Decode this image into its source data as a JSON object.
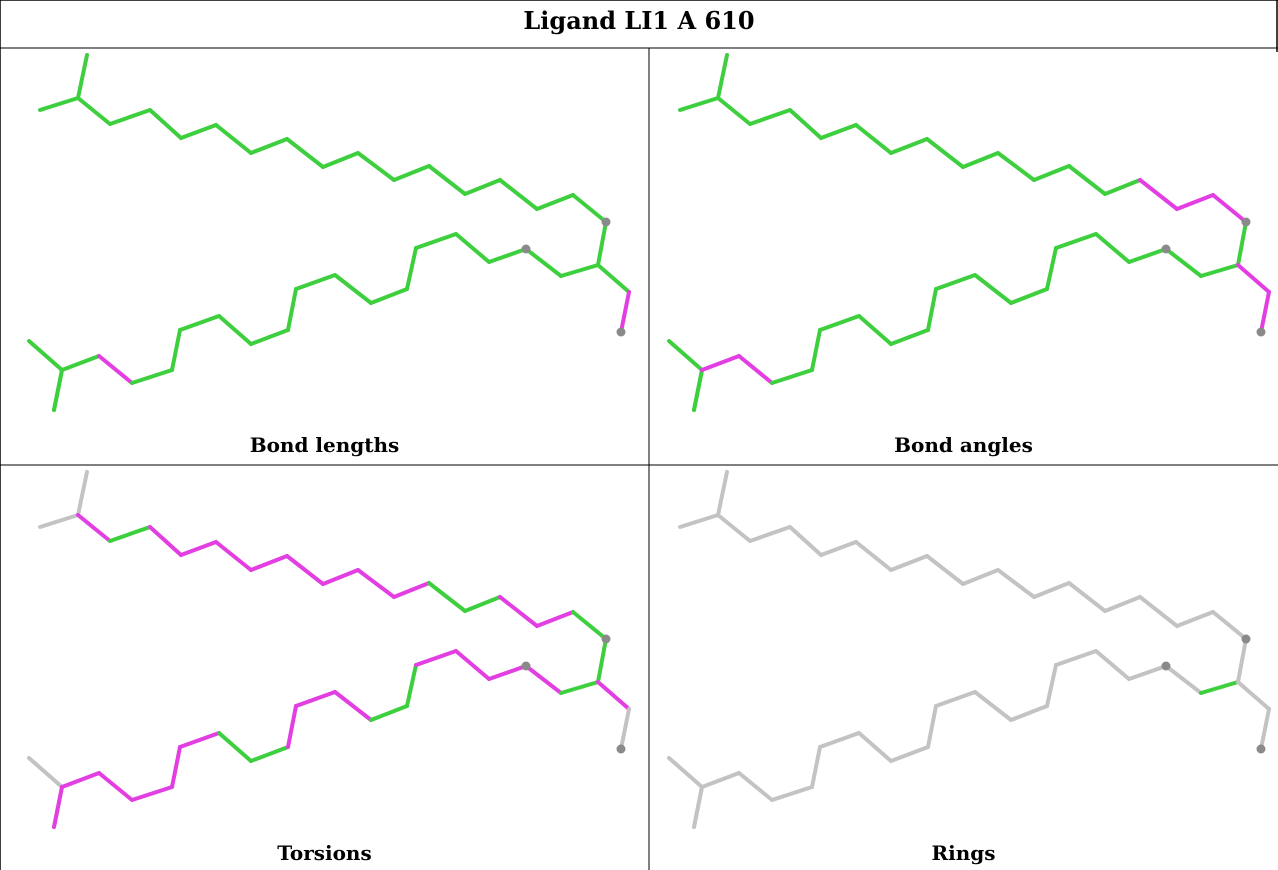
{
  "title": "Ligand LI1 A 610",
  "colors": {
    "ok": "#3ecf3e",
    "outlier": "#e23ee2",
    "none": "#c3c3c3",
    "atom": "#8a8a8a"
  },
  "panels": [
    {
      "caption": "Bond lengths",
      "chain1": [
        "ok",
        "ok",
        "ok",
        "ok",
        "ok",
        "ok",
        "ok",
        "ok",
        "ok",
        "ok",
        "ok",
        "ok",
        "ok",
        "ok",
        "ok",
        "ok",
        "ok",
        "ok"
      ],
      "chain2": [
        "ok",
        "ok",
        "ok",
        "ok",
        "outlier",
        "ok",
        "ok",
        "ok",
        "ok",
        "ok",
        "ok",
        "ok",
        "ok",
        "ok",
        "ok",
        "ok",
        "ok",
        "ok",
        "ok"
      ],
      "branch": [
        "ok",
        "outlier"
      ]
    },
    {
      "caption": "Bond angles",
      "chain1": [
        "ok",
        "ok",
        "ok",
        "ok",
        "ok",
        "ok",
        "ok",
        "ok",
        "ok",
        "ok",
        "ok",
        "ok",
        "ok",
        "ok",
        "outlier",
        "outlier",
        "outlier",
        "ok"
      ],
      "chain2": [
        "ok",
        "ok",
        "ok",
        "outlier",
        "outlier",
        "ok",
        "ok",
        "ok",
        "ok",
        "ok",
        "ok",
        "ok",
        "ok",
        "ok",
        "ok",
        "ok",
        "ok",
        "ok",
        "ok"
      ],
      "branch": [
        "outlier",
        "outlier"
      ]
    },
    {
      "caption": "Torsions",
      "chain1": [
        "none",
        "none",
        "outlier",
        "ok",
        "outlier",
        "outlier",
        "outlier",
        "outlier",
        "outlier",
        "outlier",
        "outlier",
        "outlier",
        "ok",
        "ok",
        "outlier",
        "outlier",
        "ok",
        "ok"
      ],
      "chain2": [
        "none",
        "none",
        "outlier",
        "outlier",
        "outlier",
        "outlier",
        "outlier",
        "outlier",
        "ok",
        "ok",
        "outlier",
        "outlier",
        "outlier",
        "ok",
        "ok",
        "outlier",
        "outlier",
        "outlier",
        "outlier"
      ],
      "branch": [
        "outlier",
        "none"
      ]
    },
    {
      "caption": "Rings",
      "chain1": [
        "none",
        "none",
        "none",
        "none",
        "none",
        "none",
        "none",
        "none",
        "none",
        "none",
        "none",
        "none",
        "none",
        "none",
        "none",
        "none",
        "none",
        "none"
      ],
      "chain2": [
        "none",
        "none",
        "none",
        "none",
        "none",
        "none",
        "none",
        "none",
        "none",
        "none",
        "none",
        "none",
        "none",
        "none",
        "none",
        "none",
        "none",
        "none",
        "none"
      ],
      "branch": [
        "none",
        "none"
      ]
    }
  ]
}
